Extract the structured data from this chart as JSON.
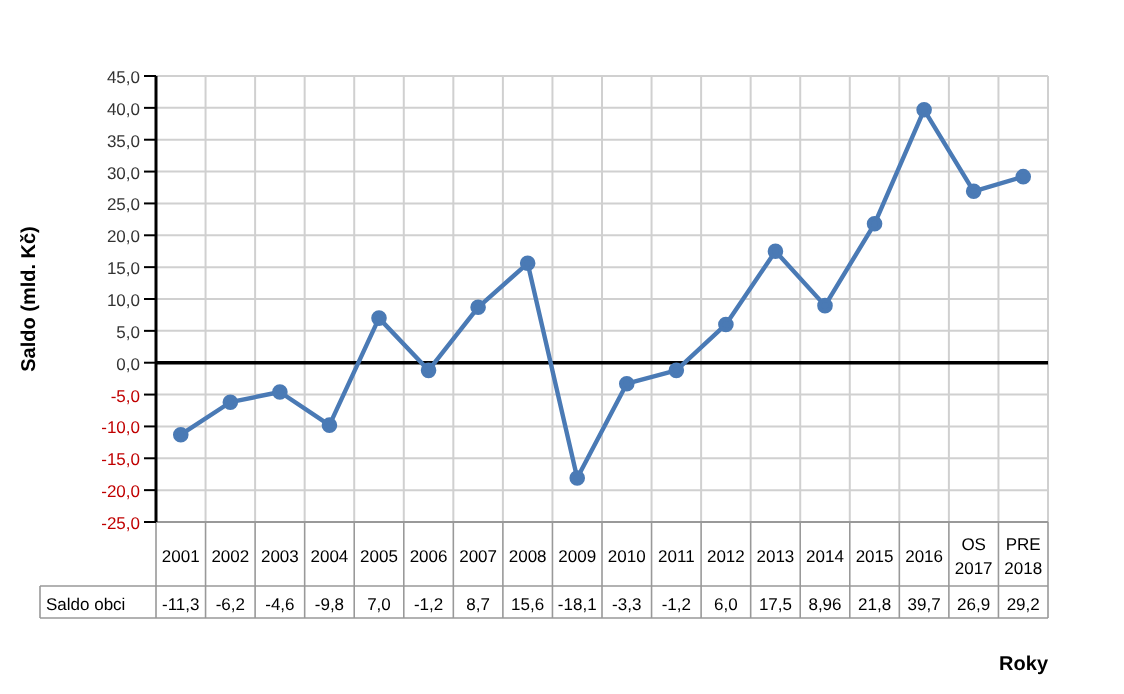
{
  "chart_data": {
    "type": "line",
    "xlabel": "Roky",
    "ylabel": "Saldo (mld. Kč)",
    "categories": [
      "2001",
      "2002",
      "2003",
      "2004",
      "2005",
      "2006",
      "2007",
      "2008",
      "2009",
      "2010",
      "2011",
      "2012",
      "2013",
      "2014",
      "2015",
      "2016",
      "OS 2017",
      "PRE 2018"
    ],
    "series": [
      {
        "name": "Saldo obci",
        "color": "#4a7ab5",
        "values": [
          -11.3,
          -6.2,
          -4.6,
          -9.8,
          7.0,
          -1.2,
          8.7,
          15.6,
          -18.1,
          -3.3,
          -1.2,
          6.0,
          17.5,
          8.96,
          21.8,
          39.7,
          26.9,
          29.2
        ],
        "value_labels": [
          "-11,3",
          "-6,2",
          "-4,6",
          "-9,8",
          "7,0",
          "-1,2",
          "8,7",
          "15,6",
          "-18,1",
          "-3,3",
          "-1,2",
          "6,0",
          "17,5",
          "8,96",
          "21,8",
          "39,7",
          "26,9",
          "29,2"
        ]
      }
    ],
    "ylim": [
      -25,
      45
    ],
    "yticks": [
      {
        "value": -25,
        "label": "-25,0"
      },
      {
        "value": -20,
        "label": "-20,0"
      },
      {
        "value": -15,
        "label": "-15,0"
      },
      {
        "value": -10,
        "label": "-10,0"
      },
      {
        "value": -5,
        "label": "-5,0"
      },
      {
        "value": 0,
        "label": "0,0"
      },
      {
        "value": 5,
        "label": "5,0"
      },
      {
        "value": 10,
        "label": "10,0"
      },
      {
        "value": 15,
        "label": "15,0"
      },
      {
        "value": 20,
        "label": "20,0"
      },
      {
        "value": 25,
        "label": "25,0"
      },
      {
        "value": 30,
        "label": "30,0"
      },
      {
        "value": 35,
        "label": "35,0"
      },
      {
        "value": 40,
        "label": "40,0"
      },
      {
        "value": 45,
        "label": "45,0"
      }
    ],
    "ref_lines": [
      {
        "axis": "y",
        "value": 0,
        "color": "#000000"
      }
    ],
    "grid": true,
    "marker": "circle",
    "line_style": "solid",
    "legend": false,
    "data_labels": true
  }
}
